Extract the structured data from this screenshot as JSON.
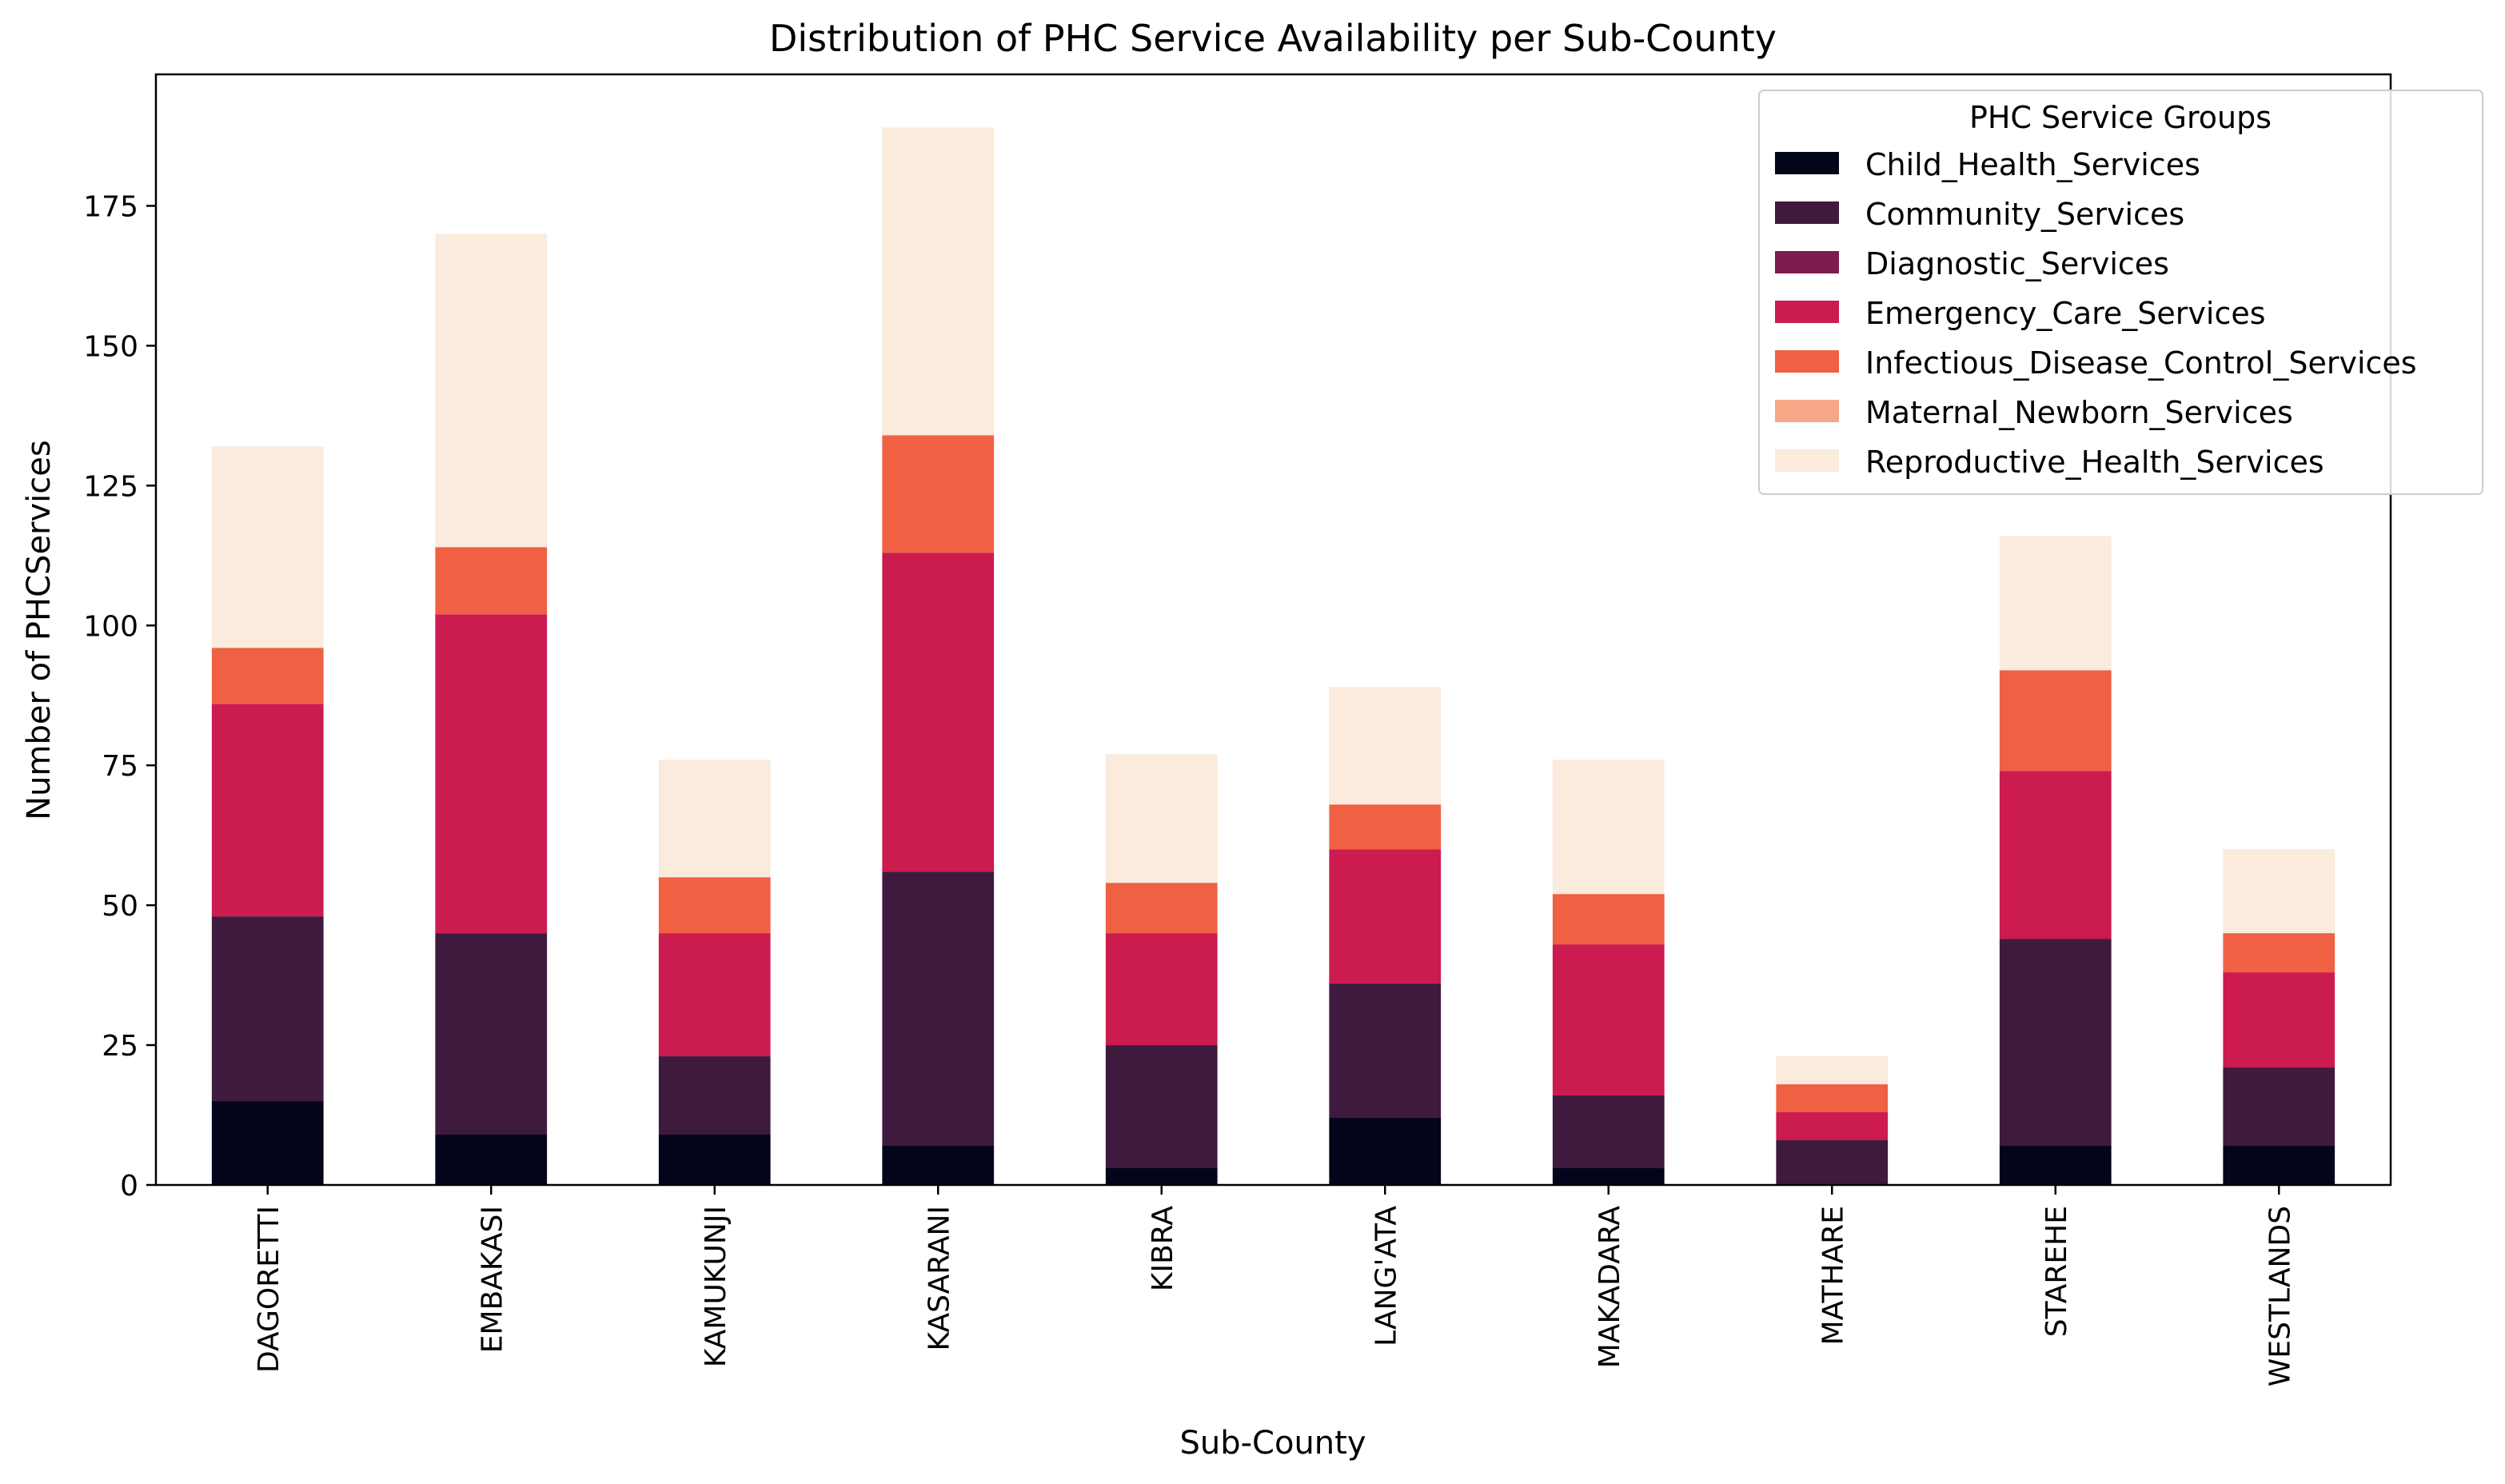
{
  "chart_data": {
    "type": "bar",
    "stacked": true,
    "title": "Distribution of PHC Service Availability per Sub-County",
    "xlabel": "Sub-County",
    "ylabel": "Number of PHCServices",
    "ylim": [
      0,
      200
    ],
    "yticks": [
      0,
      25,
      50,
      75,
      100,
      125,
      150,
      175
    ],
    "grid": false,
    "legend": {
      "title": "PHC Service Groups",
      "placement": "top-right"
    },
    "categories": [
      "DAGORETTI",
      "EMBAKASI",
      "KAMUKUNJI",
      "KASARANI",
      "KIBRA",
      "LANG'ATA",
      "MAKADARA",
      "MATHARE",
      "STAREHE",
      "WESTLANDS"
    ],
    "series": [
      {
        "name": "Child_Health_Services",
        "color": "#03051a",
        "values": [
          15,
          9,
          9,
          7,
          3,
          12,
          3,
          0,
          7,
          7
        ]
      },
      {
        "name": "Community_Services",
        "color": "#3e1a3f",
        "values": [
          33,
          36,
          14,
          49,
          22,
          24,
          13,
          8,
          37,
          14
        ]
      },
      {
        "name": "Diagnostic_Services",
        "color": "#7e1a4c",
        "values": [
          0,
          0,
          0,
          0,
          0,
          0,
          0,
          0,
          0,
          0
        ]
      },
      {
        "name": "Emergency_Care_Services",
        "color": "#cb1b4f",
        "values": [
          38,
          57,
          22,
          57,
          20,
          24,
          27,
          5,
          30,
          17
        ]
      },
      {
        "name": "Infectious_Disease_Control_Services",
        "color": "#f06043",
        "values": [
          10,
          12,
          10,
          21,
          9,
          8,
          9,
          5,
          18,
          7
        ]
      },
      {
        "name": "Maternal_Newborn_Services",
        "color": "#f6a886",
        "values": [
          0,
          0,
          0,
          0,
          0,
          0,
          0,
          0,
          0,
          0
        ]
      },
      {
        "name": "Reproductive_Health_Services",
        "color": "#faebdd",
        "values": [
          36,
          56,
          21,
          55,
          23,
          21,
          24,
          5,
          24,
          15
        ]
      }
    ]
  }
}
